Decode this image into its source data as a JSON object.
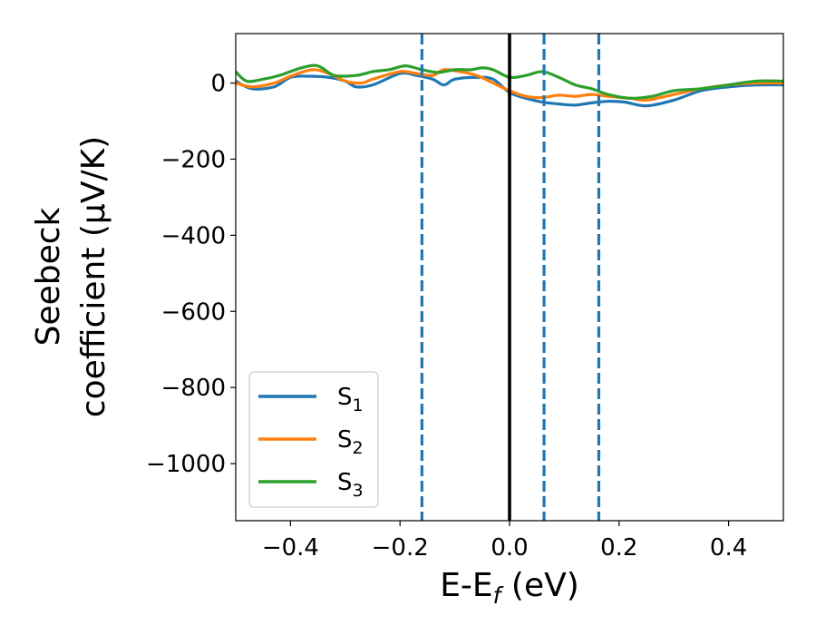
{
  "chart_data": {
    "type": "line",
    "title": "",
    "xlabel": "E-E_f (eV)",
    "ylabel_line1": "Seebeck",
    "ylabel_line2": "coefficient  (μV/K)",
    "xlim": [
      -0.5,
      0.5
    ],
    "ylim": [
      -1150,
      130
    ],
    "xticks": [
      -0.4,
      -0.2,
      0.0,
      0.2,
      0.4
    ],
    "xtick_labels": [
      "−0.4",
      "−0.2",
      "0.0",
      "0.2",
      "0.4"
    ],
    "yticks": [
      0,
      -200,
      -400,
      -600,
      -800,
      -1000
    ],
    "ytick_labels": [
      "0",
      "−200",
      "−400",
      "−600",
      "−800",
      "−1000"
    ],
    "grid": false,
    "legend_position": "lower-left",
    "vlines": [
      {
        "x": -0.16,
        "style": "dashed",
        "color": "#1f77b4"
      },
      {
        "x": 0.0,
        "style": "solid",
        "color": "#000000"
      },
      {
        "x": 0.063,
        "style": "dashed",
        "color": "#1f77b4"
      },
      {
        "x": 0.163,
        "style": "dashed",
        "color": "#1f77b4"
      }
    ],
    "series": [
      {
        "name": "S1",
        "color": "#1f77b4",
        "x": [
          -0.5,
          -0.47,
          -0.43,
          -0.4,
          -0.37,
          -0.33,
          -0.3,
          -0.28,
          -0.25,
          -0.2,
          -0.17,
          -0.14,
          -0.12,
          -0.1,
          -0.06,
          -0.03,
          0.0,
          0.03,
          0.06,
          0.09,
          0.12,
          0.15,
          0.18,
          0.21,
          0.25,
          0.3,
          0.35,
          0.4,
          0.45,
          0.5
        ],
        "values": [
          5,
          -15,
          -10,
          15,
          18,
          15,
          5,
          -10,
          -5,
          25,
          20,
          10,
          -5,
          10,
          15,
          10,
          -25,
          -40,
          -50,
          -55,
          -58,
          -52,
          -48,
          -50,
          -60,
          -45,
          -20,
          -10,
          -5,
          -5
        ]
      },
      {
        "name": "S2",
        "color": "#ff7f0e",
        "x": [
          -0.5,
          -0.47,
          -0.43,
          -0.4,
          -0.36,
          -0.33,
          -0.3,
          -0.27,
          -0.25,
          -0.2,
          -0.17,
          -0.14,
          -0.12,
          -0.09,
          -0.06,
          -0.03,
          0.0,
          0.03,
          0.06,
          0.09,
          0.12,
          0.15,
          0.18,
          0.22,
          0.25,
          0.3,
          0.35,
          0.4,
          0.45,
          0.5
        ],
        "values": [
          0,
          -10,
          0,
          18,
          35,
          25,
          5,
          0,
          10,
          30,
          25,
          20,
          35,
          30,
          20,
          0,
          -20,
          -35,
          -38,
          -32,
          -35,
          -30,
          -35,
          -40,
          -45,
          -30,
          -15,
          -5,
          0,
          0
        ]
      },
      {
        "name": "S3",
        "color": "#2ca02c",
        "x": [
          -0.5,
          -0.48,
          -0.45,
          -0.42,
          -0.38,
          -0.35,
          -0.32,
          -0.28,
          -0.25,
          -0.22,
          -0.19,
          -0.16,
          -0.13,
          -0.1,
          -0.07,
          -0.05,
          -0.03,
          0.0,
          0.03,
          0.06,
          0.09,
          0.12,
          0.15,
          0.18,
          0.22,
          0.26,
          0.3,
          0.35,
          0.4,
          0.45,
          0.5
        ],
        "values": [
          30,
          5,
          10,
          20,
          40,
          45,
          20,
          20,
          30,
          35,
          45,
          35,
          28,
          35,
          35,
          40,
          35,
          15,
          20,
          30,
          15,
          -5,
          -15,
          -30,
          -40,
          -35,
          -20,
          -15,
          -5,
          5,
          5
        ]
      }
    ]
  }
}
